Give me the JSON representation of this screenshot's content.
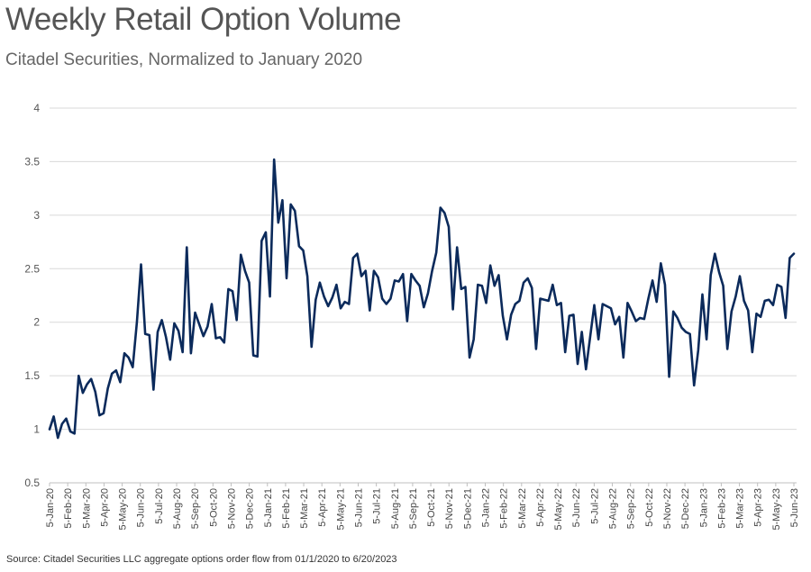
{
  "title": "Weekly Retail Option Volume",
  "subtitle": "Citadel Securities, Normalized to January 2020",
  "source": "Source: Citadel Securities LLC aggregate options order flow from 01/1/2020 to 6/20/2023",
  "colors": {
    "line": "#0b2a5b",
    "grid": "#d9d9d9",
    "axis": "#bfbfbf"
  },
  "chart_data": {
    "type": "line",
    "title": "Weekly Retail Option Volume",
    "subtitle": "Citadel Securities, Normalized to January 2020",
    "xlabel": "",
    "ylabel": "",
    "ylim": [
      0.5,
      4
    ],
    "yticks": [
      0.5,
      1,
      1.5,
      2,
      2.5,
      3,
      3.5,
      4
    ],
    "grid": true,
    "legend": "none",
    "x_tick_labels": [
      "5-Jan-20",
      "5-Feb-20",
      "5-Mar-20",
      "5-Apr-20",
      "5-May-20",
      "5-Jun-20",
      "5-Jul-20",
      "5-Aug-20",
      "5-Sep-20",
      "5-Oct-20",
      "5-Nov-20",
      "5-Dec-20",
      "5-Jan-21",
      "5-Feb-21",
      "5-Mar-21",
      "5-Apr-21",
      "5-May-21",
      "5-Jun-21",
      "5-Jul-21",
      "5-Aug-21",
      "5-Sep-21",
      "5-Oct-21",
      "5-Nov-21",
      "5-Dec-21",
      "5-Jan-22",
      "5-Feb-22",
      "5-Mar-22",
      "5-Apr-22",
      "5-May-22",
      "5-Jun-22",
      "5-Jul-22",
      "5-Aug-22",
      "5-Sep-22",
      "5-Oct-22",
      "5-Nov-22",
      "5-Dec-22",
      "5-Jan-23",
      "5-Feb-23",
      "5-Mar-23",
      "5-Apr-23",
      "5-May-23",
      "5-Jun-23"
    ],
    "series": [
      {
        "values": [
          1.0,
          1.12,
          0.92,
          1.05,
          1.1,
          0.98,
          0.96,
          1.5,
          1.34,
          1.42,
          1.47,
          1.35,
          1.13,
          1.15,
          1.38,
          1.52,
          1.55,
          1.44,
          1.71,
          1.67,
          1.58,
          2.0,
          2.54,
          1.89,
          1.88,
          1.37,
          1.91,
          2.02,
          1.86,
          1.65,
          1.99,
          1.92,
          1.72,
          2.7,
          1.71,
          2.09,
          1.98,
          1.87,
          1.96,
          2.17,
          1.85,
          1.86,
          1.81,
          2.31,
          2.29,
          2.02,
          2.63,
          2.48,
          2.37,
          1.69,
          1.68,
          2.76,
          2.84,
          2.24,
          3.52,
          2.93,
          3.14,
          2.41,
          3.1,
          3.04,
          2.71,
          2.67,
          2.43,
          1.77,
          2.21,
          2.37,
          2.24,
          2.15,
          2.23,
          2.35,
          2.13,
          2.19,
          2.17,
          2.6,
          2.64,
          2.43,
          2.48,
          2.11,
          2.48,
          2.42,
          2.22,
          2.17,
          2.22,
          2.39,
          2.38,
          2.45,
          2.01,
          2.45,
          2.39,
          2.34,
          2.14,
          2.27,
          2.48,
          2.65,
          3.07,
          3.02,
          2.89,
          2.12,
          2.7,
          2.31,
          2.33,
          1.67,
          1.84,
          2.35,
          2.34,
          2.18,
          2.53,
          2.34,
          2.44,
          2.06,
          1.84,
          2.07,
          2.17,
          2.2,
          2.37,
          2.41,
          2.32,
          1.75,
          2.22,
          2.21,
          2.2,
          2.35,
          2.16,
          2.18,
          1.72,
          2.06,
          2.07,
          1.61,
          1.91,
          1.56,
          1.86,
          2.16,
          1.84,
          2.17,
          2.15,
          2.13,
          1.98,
          2.05,
          1.67,
          2.18,
          2.1,
          2.01,
          2.04,
          2.03,
          2.22,
          2.39,
          2.19,
          2.55,
          2.35,
          1.49,
          2.1,
          2.04,
          1.95,
          1.91,
          1.89,
          1.41,
          1.74,
          2.26,
          1.84,
          2.44,
          2.64,
          2.47,
          2.34,
          1.75,
          2.1,
          2.24,
          2.43,
          2.2,
          2.11,
          1.72,
          2.08,
          2.05,
          2.2,
          2.21,
          2.16,
          2.35,
          2.33,
          2.04,
          2.6,
          2.64
        ]
      }
    ]
  }
}
